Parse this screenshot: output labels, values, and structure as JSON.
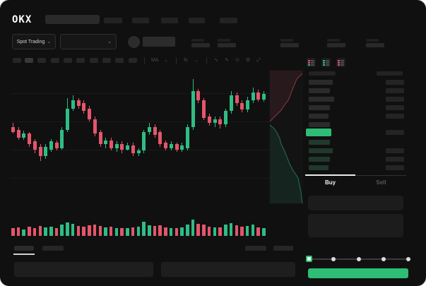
{
  "app": {
    "logo": "OKX"
  },
  "market_bar": {
    "mode_selector": {
      "label": "Spot Trading",
      "chevron": "⌄"
    },
    "pair_selector": {
      "chevron": "⌄"
    }
  },
  "chart_toolbar": {
    "icons": [
      {
        "name": "toolbar-divider",
        "glyph": ""
      },
      {
        "name": "ma-overlay-label",
        "glyph": "MA"
      },
      {
        "name": "chevron-down-icon",
        "glyph": "⌄"
      },
      {
        "name": "toolbar-divider",
        "glyph": ""
      },
      {
        "name": "fx-indicators-label",
        "glyph": "fx"
      },
      {
        "name": "chevron-down-icon",
        "glyph": "⌄"
      },
      {
        "name": "toolbar-divider",
        "glyph": ""
      },
      {
        "name": "line-chart-icon",
        "glyph": "∿"
      },
      {
        "name": "pencil-draw-icon",
        "glyph": "✎"
      },
      {
        "name": "camera-icon",
        "glyph": "⊙"
      },
      {
        "name": "settings-gear-icon",
        "glyph": "⚙"
      },
      {
        "name": "fullscreen-icon",
        "glyph": "⤢"
      }
    ]
  },
  "colors": {
    "up_green": "#2ebd85",
    "down_red": "#e3566b",
    "accent_green": "#2ebd74",
    "bid_row_green": "#21382d",
    "ask_row_gray": "#2b2b2b"
  },
  "chart_data": {
    "type": "candlestick",
    "title": "",
    "xlabel": "",
    "ylabel": "",
    "note": "no axis tick labels visible; OHLC values normalized 0-100 from pixel positions",
    "colors": {
      "up": "#2ebd85",
      "down": "#e3566b"
    },
    "gridlines": [
      34,
      74,
      114,
      154
    ],
    "candles": [
      [
        60,
        63,
        55,
        56
      ],
      [
        58,
        60,
        50,
        52
      ],
      [
        52,
        57,
        50,
        55
      ],
      [
        55,
        56,
        45,
        47
      ],
      [
        49,
        51,
        40,
        43
      ],
      [
        45,
        47,
        34,
        38
      ],
      [
        38,
        47,
        36,
        45
      ],
      [
        43,
        51,
        41,
        49
      ],
      [
        48,
        50,
        42,
        44
      ],
      [
        44,
        60,
        43,
        58
      ],
      [
        58,
        82,
        56,
        74
      ],
      [
        74,
        84,
        72,
        80
      ],
      [
        80,
        82,
        74,
        76
      ],
      [
        78,
        80,
        70,
        72
      ],
      [
        74,
        76,
        64,
        66
      ],
      [
        66,
        68,
        53,
        55
      ],
      [
        56,
        58,
        45,
        47
      ],
      [
        47,
        52,
        44,
        50
      ],
      [
        50,
        52,
        42,
        44
      ],
      [
        44,
        49,
        41,
        47
      ],
      [
        47,
        49,
        40,
        43
      ],
      [
        43,
        48,
        42,
        46
      ],
      [
        46,
        48,
        38,
        40
      ],
      [
        40,
        44,
        38,
        42
      ],
      [
        42,
        58,
        40,
        56
      ],
      [
        56,
        63,
        54,
        60
      ],
      [
        60,
        62,
        52,
        54
      ],
      [
        56,
        58,
        45,
        47
      ],
      [
        48,
        50,
        42,
        44
      ],
      [
        44,
        49,
        42,
        47
      ],
      [
        47,
        48,
        41,
        43
      ],
      [
        43,
        48,
        41,
        46
      ],
      [
        44,
        62,
        42,
        60
      ],
      [
        60,
        96,
        58,
        87
      ],
      [
        87,
        89,
        78,
        80
      ],
      [
        80,
        82,
        65,
        67
      ],
      [
        68,
        70,
        61,
        63
      ],
      [
        63,
        68,
        60,
        66
      ],
      [
        66,
        68,
        59,
        62
      ],
      [
        62,
        74,
        60,
        72
      ],
      [
        72,
        87,
        70,
        84
      ],
      [
        84,
        86,
        76,
        78
      ],
      [
        78,
        80,
        71,
        73
      ],
      [
        73,
        83,
        71,
        80
      ],
      [
        80,
        90,
        78,
        86
      ],
      [
        86,
        88,
        79,
        81
      ],
      [
        81,
        87,
        79,
        85
      ]
    ],
    "volumes": [
      30,
      35,
      25,
      40,
      30,
      45,
      38,
      42,
      30,
      55,
      70,
      60,
      45,
      40,
      50,
      55,
      45,
      35,
      40,
      32,
      32,
      30,
      35,
      40,
      75,
      50,
      45,
      50,
      38,
      32,
      30,
      35,
      55,
      85,
      60,
      55,
      40,
      35,
      38,
      55,
      65,
      50,
      40,
      45,
      55,
      35,
      30
    ],
    "depth": {
      "asks": [
        [
          47,
          5
        ],
        [
          39,
          13
        ],
        [
          35,
          23
        ],
        [
          31,
          33
        ],
        [
          27,
          43
        ],
        [
          21,
          51
        ],
        [
          17,
          57
        ],
        [
          13,
          61
        ],
        [
          9,
          65
        ],
        [
          5,
          69
        ],
        [
          1,
          73
        ]
      ],
      "bids": [
        [
          1,
          78
        ],
        [
          7,
          83
        ],
        [
          11,
          89
        ],
        [
          15,
          97
        ],
        [
          17,
          105
        ],
        [
          21,
          113
        ],
        [
          25,
          123
        ],
        [
          29,
          133
        ],
        [
          33,
          141
        ],
        [
          37,
          147
        ],
        [
          41,
          153
        ],
        [
          43,
          163
        ],
        [
          45,
          173
        ],
        [
          46,
          183
        ],
        [
          47,
          189
        ]
      ]
    }
  },
  "orderbook": {
    "view_toggles": [
      "book-both",
      "book-bids-only",
      "book-asks-only"
    ],
    "asks": [
      {
        "l": 34,
        "r": 26
      },
      {
        "l": 30,
        "r": 26
      },
      {
        "l": 36,
        "r": 26
      },
      {
        "l": 30,
        "r": 26
      },
      {
        "l": 28,
        "r": 26
      },
      {
        "l": 30,
        "r": 0
      }
    ],
    "price_row": {
      "highlight": true,
      "right_bar": 26
    },
    "bids": [
      {
        "l": 30,
        "r": 0
      },
      {
        "l": 34,
        "r": 26
      },
      {
        "l": 30,
        "r": 26
      },
      {
        "l": 28,
        "r": 26
      }
    ]
  },
  "trade_panel": {
    "tabs": {
      "buy": "Buy",
      "sell": "Sell",
      "active": "Buy"
    },
    "slider": {
      "stops": [
        0,
        25,
        50,
        75,
        100
      ],
      "value": 0
    }
  }
}
